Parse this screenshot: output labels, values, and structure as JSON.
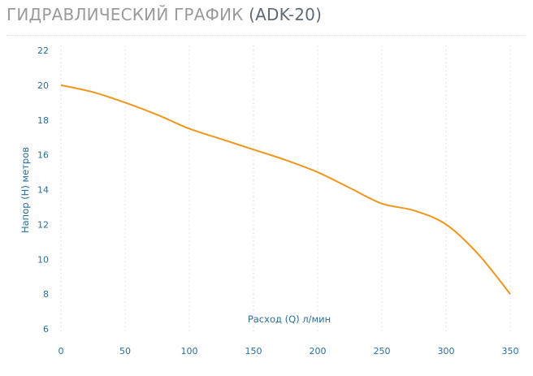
{
  "header": {
    "title_main": "ГИДРАВЛИЧЕСКИЙ ГРАФИК",
    "title_model": "(ADK-20)"
  },
  "colors": {
    "line": "#f0961e",
    "grid": "#dde6ee",
    "axis_text": "#2a6f97"
  },
  "chart_data": {
    "type": "line",
    "title": "ГИДРАВЛИЧЕСКИЙ ГРАФИК (ADK-20)",
    "xlabel": "Расход (Q) л/мин",
    "ylabel": "Напор (H) метров",
    "xlim": [
      0,
      350
    ],
    "ylim": [
      6,
      22
    ],
    "x_ticks": [
      0,
      50,
      100,
      150,
      200,
      250,
      300,
      350
    ],
    "y_ticks": [
      6,
      8,
      10,
      12,
      14,
      16,
      18,
      20,
      22
    ],
    "grid": "vertical-dotted",
    "series": [
      {
        "x": [
          0,
          25,
          50,
          75,
          100,
          125,
          150,
          175,
          200,
          225,
          250,
          275,
          300,
          325,
          350
        ],
        "values": [
          20,
          19.6,
          19.0,
          18.3,
          17.5,
          16.9,
          16.3,
          15.7,
          15.0,
          14.1,
          13.2,
          12.8,
          12.0,
          10.3,
          8.0
        ]
      }
    ]
  }
}
